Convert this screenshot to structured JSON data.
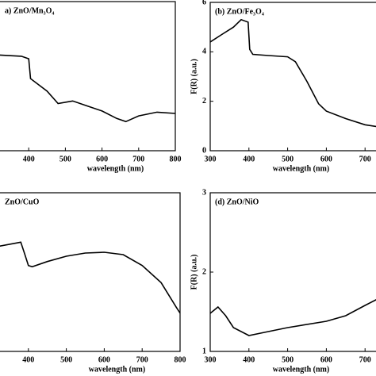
{
  "chart_data": [
    {
      "type": "line",
      "title": "a)  ZnO/Mn₃O₄",
      "xlabel": "wavelength (nm)",
      "x": [
        320,
        380,
        400,
        405,
        450,
        480,
        520,
        560,
        600,
        640,
        665,
        700,
        750,
        800
      ],
      "values": [
        3.85,
        3.8,
        3.7,
        2.9,
        2.4,
        1.9,
        2.0,
        1.8,
        1.6,
        1.3,
        1.17,
        1.4,
        1.55,
        1.5
      ],
      "xlim": [
        300,
        800
      ],
      "xticks": [
        400,
        500,
        600,
        700,
        800
      ],
      "ylim": [
        0,
        6
      ],
      "color": "#000000"
    },
    {
      "type": "line",
      "title": "(b) ZnO/Fe₃O₄",
      "xlabel": "wavelength (nm)",
      "ylabel": "F(R) (a.u.)",
      "x": [
        300,
        330,
        360,
        380,
        398,
        402,
        410,
        450,
        500,
        520,
        550,
        580,
        600,
        650,
        700,
        740
      ],
      "values": [
        4.4,
        4.7,
        5.0,
        5.3,
        5.2,
        4.1,
        3.9,
        3.85,
        3.8,
        3.6,
        2.8,
        1.9,
        1.6,
        1.3,
        1.05,
        0.95
      ],
      "xlim": [
        300,
        800
      ],
      "xticks": [
        300,
        400,
        500,
        600,
        700
      ],
      "ylim": [
        0,
        6
      ],
      "yticks": [
        0,
        2,
        4,
        6
      ],
      "color": "#000000"
    },
    {
      "type": "line",
      "title": "ZnO/CuO",
      "xlabel": "wavelength (nm)",
      "x": [
        320,
        380,
        390,
        400,
        410,
        450,
        500,
        550,
        600,
        650,
        700,
        750,
        790,
        800
      ],
      "values": [
        3.97,
        4.13,
        3.7,
        3.25,
        3.2,
        3.4,
        3.6,
        3.72,
        3.75,
        3.66,
        3.25,
        2.6,
        1.67,
        1.45
      ],
      "xlim": [
        300,
        800
      ],
      "xticks": [
        400,
        500,
        600,
        700,
        800
      ],
      "ylim": [
        0,
        6
      ],
      "color": "#000000"
    },
    {
      "type": "line",
      "title": "(d) ZnO/NiO",
      "xlabel": "wavelength (nm)",
      "ylabel": "F(R) (a.u.)",
      "x": [
        300,
        320,
        340,
        360,
        400,
        450,
        500,
        600,
        650,
        700,
        740
      ],
      "values": [
        1.48,
        1.56,
        1.45,
        1.3,
        1.2,
        1.25,
        1.3,
        1.38,
        1.45,
        1.58,
        1.68
      ],
      "xlim": [
        300,
        800
      ],
      "xticks": [
        300,
        400,
        500,
        600,
        700
      ],
      "ylim": [
        1,
        3
      ],
      "yticks": [
        1,
        2,
        3
      ],
      "color": "#000000"
    }
  ]
}
